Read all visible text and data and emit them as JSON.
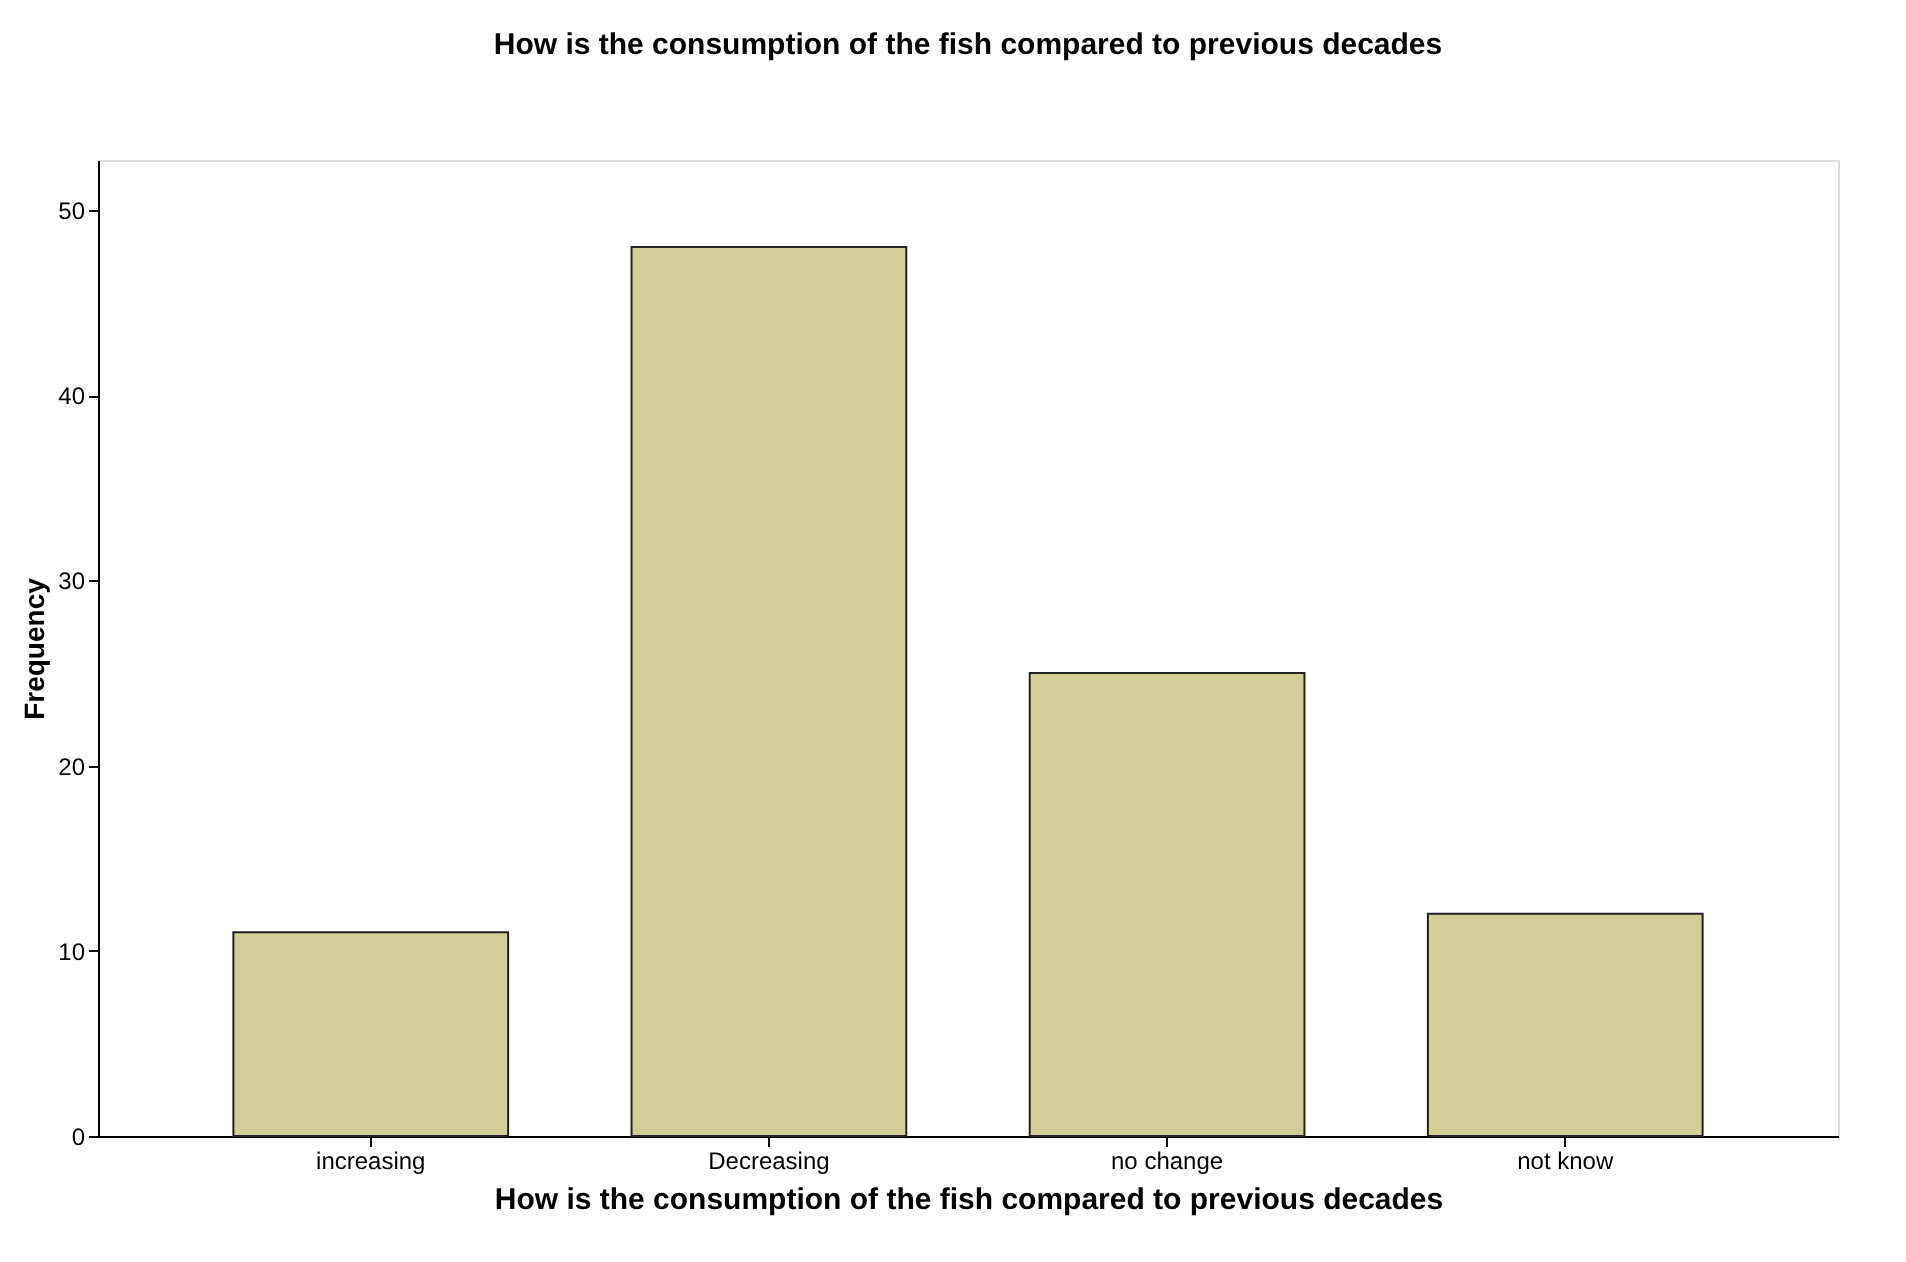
{
  "chart_data": {
    "type": "bar",
    "title": "How is the consumption of the fish compared to previous decades",
    "xlabel": "How is the consumption of the fish compared to previous decades",
    "ylabel": "Frequency",
    "categories": [
      "increasing",
      "Decreasing",
      "no change",
      "not know"
    ],
    "values": [
      11,
      48,
      25,
      12
    ],
    "color": "#d3ce97",
    "ylim": [
      0,
      52.7
    ],
    "yticks": [
      0,
      10,
      20,
      30,
      40,
      50
    ],
    "grid": false
  }
}
